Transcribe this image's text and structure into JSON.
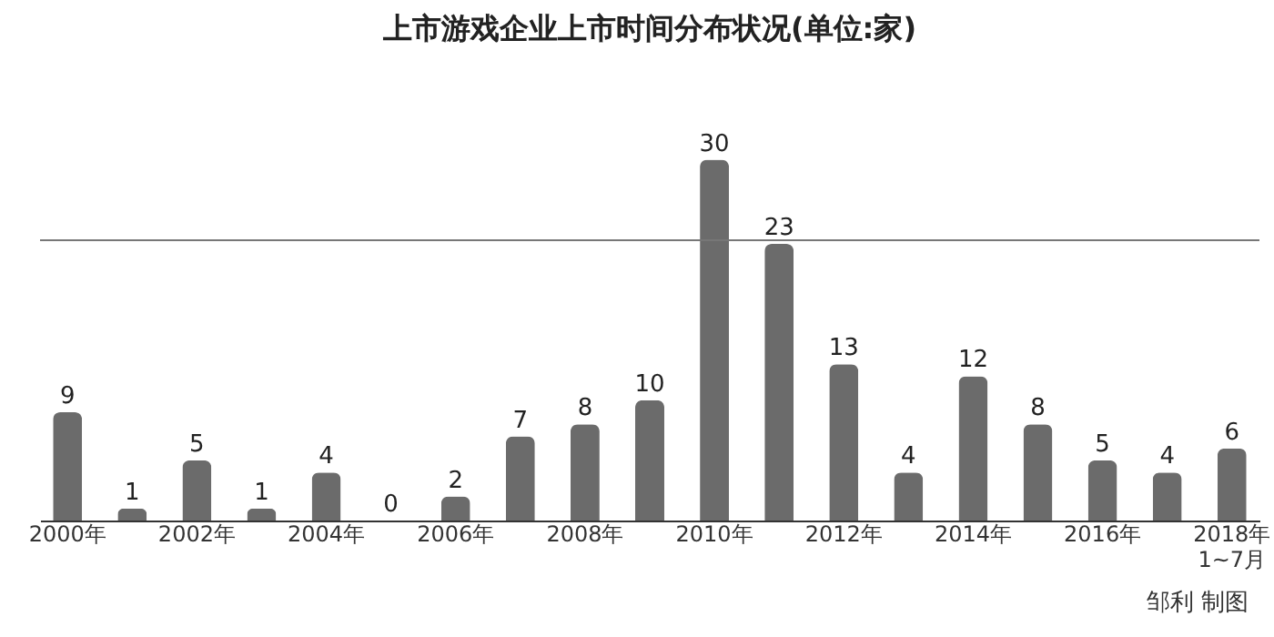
{
  "chart_data": {
    "type": "bar",
    "title": "上市游戏企业上市时间分布状况(单位:家)",
    "categories": [
      "2000年",
      null,
      "2002年",
      null,
      "2004年",
      null,
      "2006年",
      null,
      "2008年",
      null,
      "2010年",
      null,
      "2012年",
      null,
      "2014年",
      null,
      "2016年",
      null,
      "2018年\n1~7月"
    ],
    "values": [
      9,
      1,
      5,
      1,
      4,
      0,
      2,
      7,
      8,
      10,
      30,
      23,
      13,
      4,
      12,
      8,
      5,
      4,
      6
    ],
    "color": "#6b6b6b",
    "data_labels": true,
    "ref_lines": [
      {
        "axis": "y",
        "value": 23.3,
        "color": "#777777"
      }
    ],
    "annotations": [
      "邹利 制图"
    ]
  }
}
